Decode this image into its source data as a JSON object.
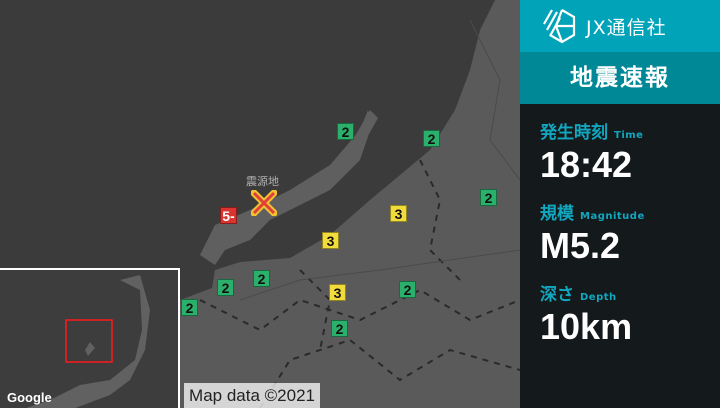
{
  "brand": {
    "name": "JX通信社",
    "logo_icon": "jx-hexagon-logo"
  },
  "title": "地震速報",
  "info": [
    {
      "label": "発生時刻",
      "label_en": "Time",
      "value": "18:42"
    },
    {
      "label": "規模",
      "label_en": "Magnitude",
      "value": "M5.2"
    },
    {
      "label": "深さ",
      "label_en": "Depth",
      "value": "10km"
    }
  ],
  "map": {
    "epicenter_label": "震源地",
    "attribution": "Map data ©2021",
    "google_logo": "Google",
    "intensities": [
      "2",
      "2",
      "2",
      "5-",
      "3",
      "3",
      "2",
      "2",
      "2",
      "3",
      "2",
      "2"
    ]
  },
  "colors": {
    "brand": "#00a3b8",
    "title_band": "#008896",
    "panel": "#141a1c",
    "shindo_2": "#2bb06b",
    "shindo_3": "#f2dc3b",
    "shindo_5minus": "#d9342f",
    "label": "#11a7bf"
  }
}
